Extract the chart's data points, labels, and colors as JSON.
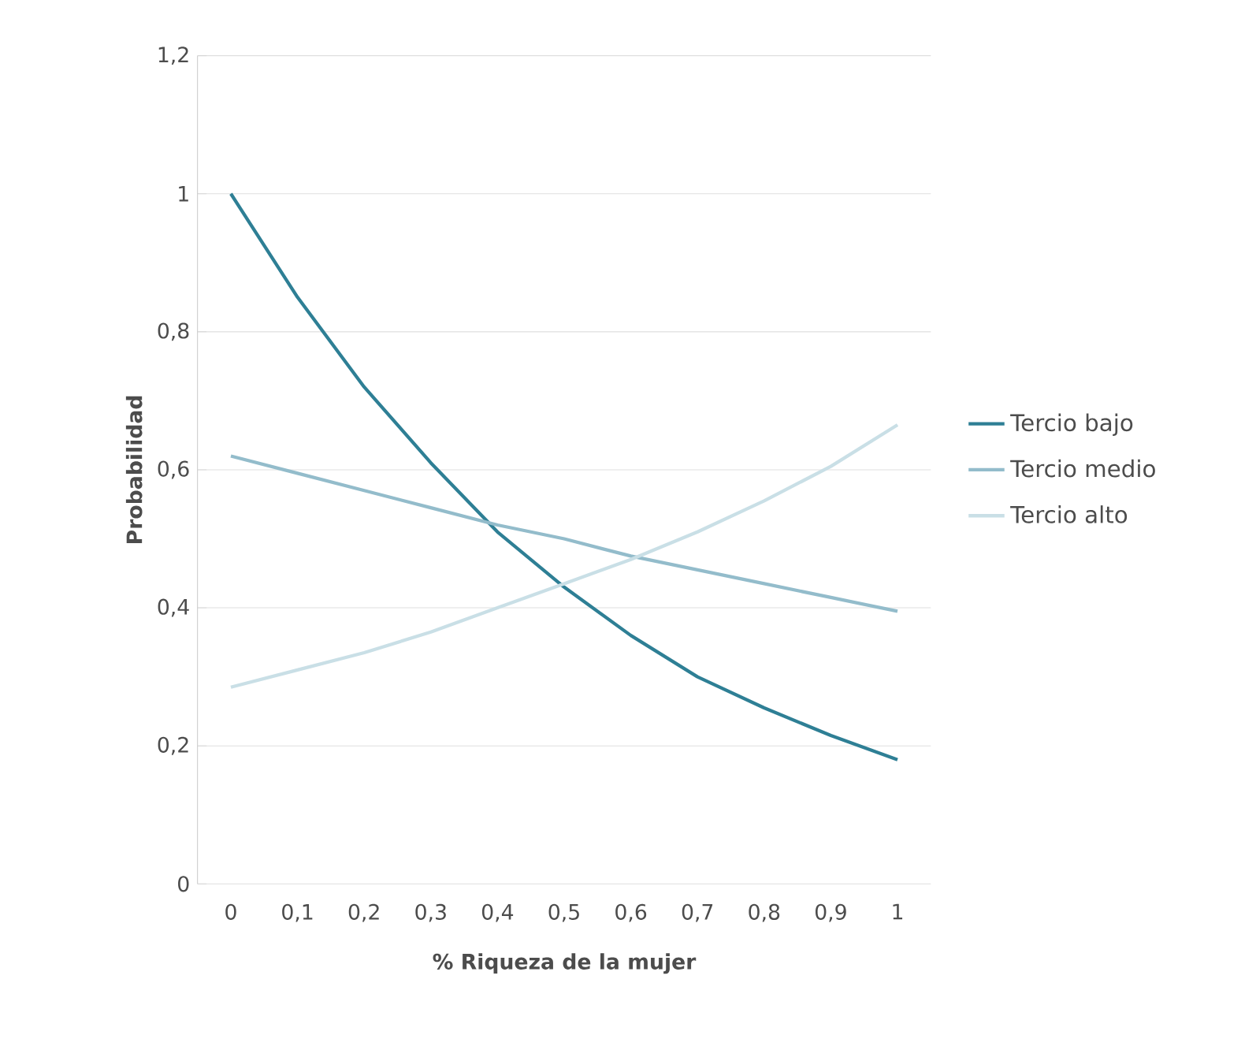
{
  "chart_data": {
    "type": "line",
    "xlabel": "% Riqueza de la mujer",
    "ylabel": "Probabilidad",
    "x": [
      0,
      0.1,
      0.2,
      0.3,
      0.4,
      0.5,
      0.6,
      0.7,
      0.8,
      0.9,
      1
    ],
    "series": [
      {
        "name": "Tercio bajo",
        "color": "#2e7f95",
        "values": [
          1.0,
          0.85,
          0.72,
          0.61,
          0.51,
          0.43,
          0.36,
          0.3,
          0.255,
          0.215,
          0.18
        ]
      },
      {
        "name": "Tercio medio",
        "color": "#93bccb",
        "values": [
          0.62,
          0.595,
          0.57,
          0.545,
          0.52,
          0.5,
          0.475,
          0.455,
          0.435,
          0.415,
          0.395
        ]
      },
      {
        "name": "Tercio alto",
        "color": "#c9dfe6",
        "values": [
          0.285,
          0.31,
          0.335,
          0.365,
          0.4,
          0.435,
          0.47,
          0.51,
          0.555,
          0.605,
          0.665
        ]
      }
    ],
    "xlim": [
      -0.05,
      1.05
    ],
    "ylim": [
      0,
      1.2
    ],
    "xticks": [
      0,
      {
        "value": 0.1,
        "label": "0,1"
      },
      {
        "value": 0.2,
        "label": "0,2"
      },
      {
        "value": 0.3,
        "label": "0,3"
      },
      {
        "value": 0.4,
        "label": "0,4"
      },
      {
        "value": 0.5,
        "label": "0,5"
      },
      {
        "value": 0.6,
        "label": "0,6"
      },
      {
        "value": 0.7,
        "label": "0,7"
      },
      {
        "value": 0.8,
        "label": "0,8"
      },
      {
        "value": 0.9,
        "label": "0,9"
      },
      1
    ],
    "yticks": [
      0,
      {
        "value": 0.2,
        "label": "0,2"
      },
      {
        "value": 0.4,
        "label": "0,4"
      },
      {
        "value": 0.6,
        "label": "0,6"
      },
      {
        "value": 0.8,
        "label": "0,8"
      },
      1,
      {
        "value": 1.2,
        "label": "1,2"
      }
    ],
    "grid": "y",
    "legend": "right",
    "marker": "none",
    "line_style": "solid"
  }
}
